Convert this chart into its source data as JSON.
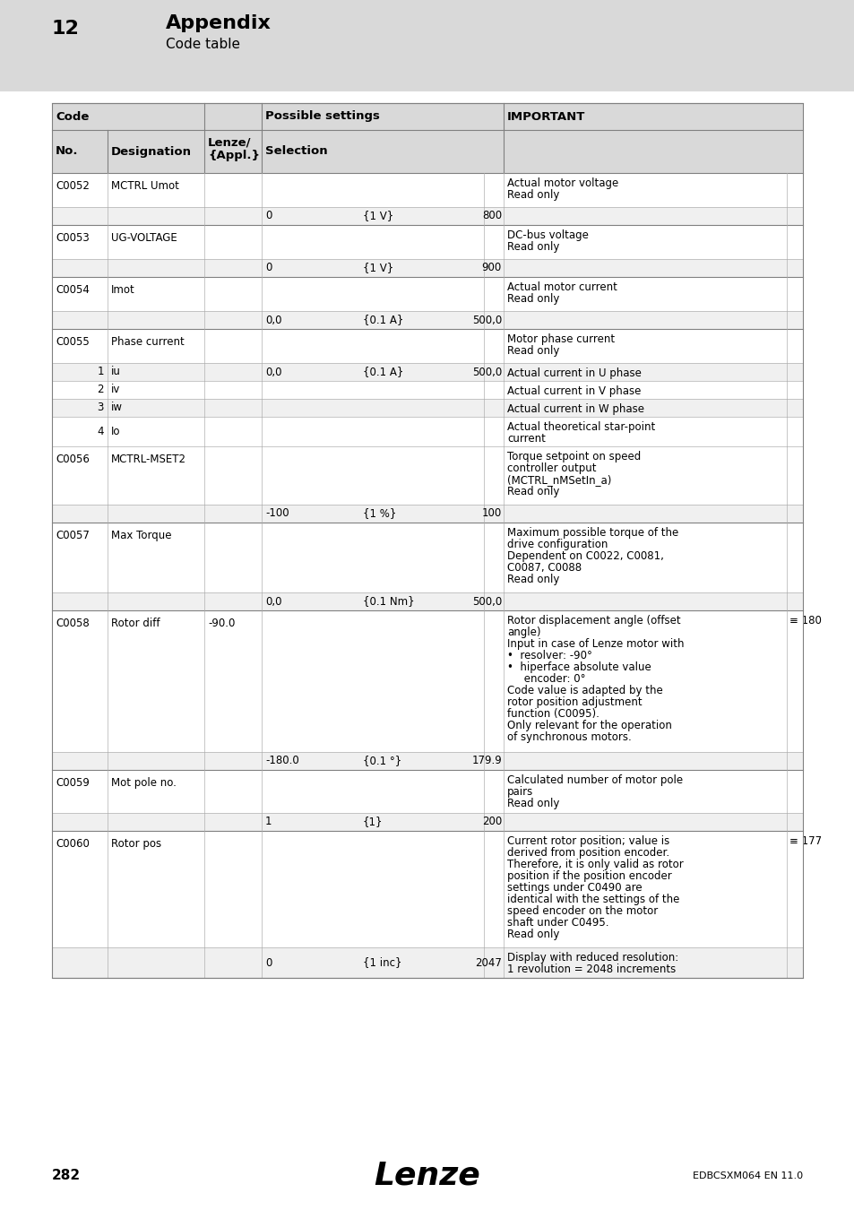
{
  "page_bg": "#ffffff",
  "header_bg": "#d9d9d9",
  "chapter_num": "12",
  "chapter_title": "Appendix",
  "chapter_subtitle": "Code table",
  "page_num": "282",
  "publisher": "Lenze",
  "doc_code": "EDBCSXM064 EN 11.0"
}
